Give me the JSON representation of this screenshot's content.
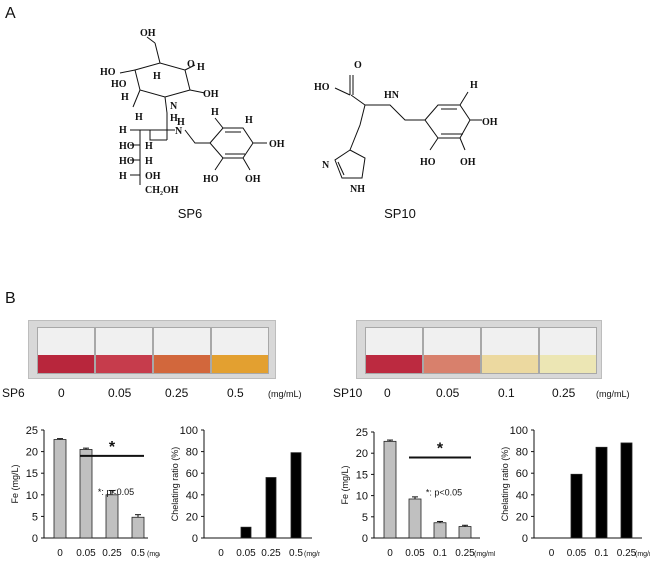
{
  "panel_a": {
    "label": "A",
    "structures": [
      {
        "name": "SP6",
        "atoms": [
          "OH",
          "HO",
          "HO",
          "H",
          "O",
          "H",
          "OH",
          "H",
          "OH",
          "H",
          "N",
          "H",
          "H",
          "N",
          "H",
          "H",
          "HO",
          "H",
          "HO",
          "H",
          "H",
          "OH",
          "H",
          "OH",
          "H",
          "CH2OH",
          "H",
          "H",
          "H",
          "OH",
          "HO",
          "OH"
        ]
      },
      {
        "name": "SP10",
        "atoms": [
          "O",
          "HO",
          "HN",
          "H",
          "OH",
          "N",
          "NH",
          "HO",
          "OH"
        ]
      }
    ]
  },
  "panel_b": {
    "label": "B",
    "groups": [
      {
        "sample": "SP6",
        "conc_labels": [
          "0",
          "0.05",
          "0.25",
          "0.5"
        ],
        "unit": "(mg/mL)",
        "tube_colors": [
          "#b8263c",
          "#c63c4c",
          "#d2673c",
          "#e3a030"
        ]
      },
      {
        "sample": "SP10",
        "conc_labels": [
          "0",
          "0.05",
          "0.1",
          "0.25"
        ],
        "unit": "(mg/mL)",
        "tube_colors": [
          "#bc2a40",
          "#d8806c",
          "#ecd9a0",
          "#ece6b4"
        ]
      }
    ]
  },
  "chart_data": [
    {
      "type": "bar",
      "id": "sp6-fe",
      "categories": [
        "0",
        "0.05",
        "0.25",
        "0.5"
      ],
      "x_unit": "(mg/mL)",
      "values": [
        22.8,
        20.5,
        10.0,
        4.8
      ],
      "errors": [
        0.2,
        0.3,
        1.0,
        0.6
      ],
      "ylabel": "Fe (mg/L)",
      "ylim": [
        0,
        25
      ],
      "yticks": [
        0,
        5,
        10,
        15,
        20,
        25
      ],
      "bar_color": "#c0c0c0",
      "significance": "*",
      "sig_note": "*: p<0.05"
    },
    {
      "type": "bar",
      "id": "sp6-chel",
      "categories": [
        "0",
        "0.05",
        "0.25",
        "0.5"
      ],
      "x_unit": "(mg/mL)",
      "values": [
        0,
        10,
        56,
        79
      ],
      "ylabel": "Chelating ratio (%)",
      "ylim": [
        0,
        100
      ],
      "yticks": [
        0,
        20,
        40,
        60,
        80,
        100
      ],
      "bar_color": "#000000"
    },
    {
      "type": "bar",
      "id": "sp10-fe",
      "categories": [
        "0",
        "0.05",
        "0.1",
        "0.25"
      ],
      "x_unit": "(mg/mL)",
      "values": [
        22.8,
        9.2,
        3.6,
        2.7
      ],
      "errors": [
        0.3,
        0.5,
        0.3,
        0.3
      ],
      "ylabel": "Fe (mg/L)",
      "ylim": [
        0,
        25
      ],
      "yticks": [
        0,
        5,
        10,
        15,
        20,
        25
      ],
      "bar_color": "#c0c0c0",
      "significance": "*",
      "sig_note": "*: p<0.05"
    },
    {
      "type": "bar",
      "id": "sp10-chel",
      "categories": [
        "0",
        "0.05",
        "0.1",
        "0.25"
      ],
      "x_unit": "(mg/mL)",
      "values": [
        0,
        59,
        84,
        88
      ],
      "ylabel": "Chelating ratio (%)",
      "ylim": [
        0,
        100
      ],
      "yticks": [
        0,
        20,
        40,
        60,
        80,
        100
      ],
      "bar_color": "#000000"
    }
  ]
}
